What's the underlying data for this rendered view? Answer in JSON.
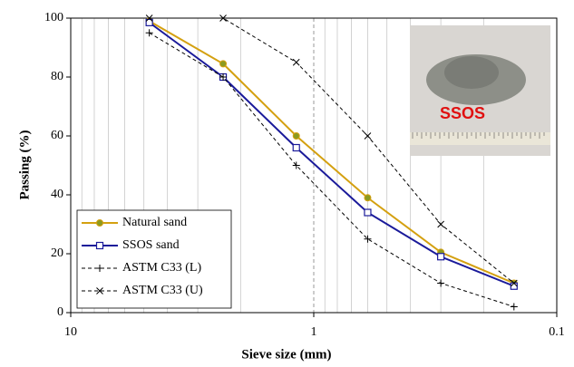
{
  "chart_data": {
    "type": "line",
    "x_label": "Sieve size (mm)",
    "y_label": "Passing (%)",
    "x": [
      4.75,
      2.36,
      1.18,
      0.6,
      0.3,
      0.15
    ],
    "xlim": [
      10,
      0.1
    ],
    "xticks": [
      10,
      1,
      0.1
    ],
    "x_scale": "log",
    "minor_grid": true,
    "ylim": [
      0,
      100
    ],
    "yticks": [
      0,
      20,
      40,
      60,
      80,
      100
    ],
    "legend_position": "lower left",
    "inset_label": "SSOS",
    "series": [
      {
        "name": "Natural sand",
        "color": "#d4a010",
        "marker": "circle",
        "dash": false,
        "values": [
          99,
          84.5,
          60,
          39,
          20.5,
          10
        ]
      },
      {
        "name": "SSOS sand",
        "color": "#1a1a9a",
        "marker": "square",
        "dash": false,
        "values": [
          98.5,
          80,
          56,
          34,
          19,
          9
        ]
      },
      {
        "name": "ASTM C33 (L)",
        "color": "#000000",
        "marker": "plus",
        "dash": true,
        "values": [
          95,
          80,
          50,
          25,
          10,
          2
        ]
      },
      {
        "name": "ASTM C33 (U)",
        "color": "#000000",
        "marker": "x",
        "dash": true,
        "values": [
          100,
          100,
          85,
          60,
          30,
          10
        ]
      }
    ]
  }
}
